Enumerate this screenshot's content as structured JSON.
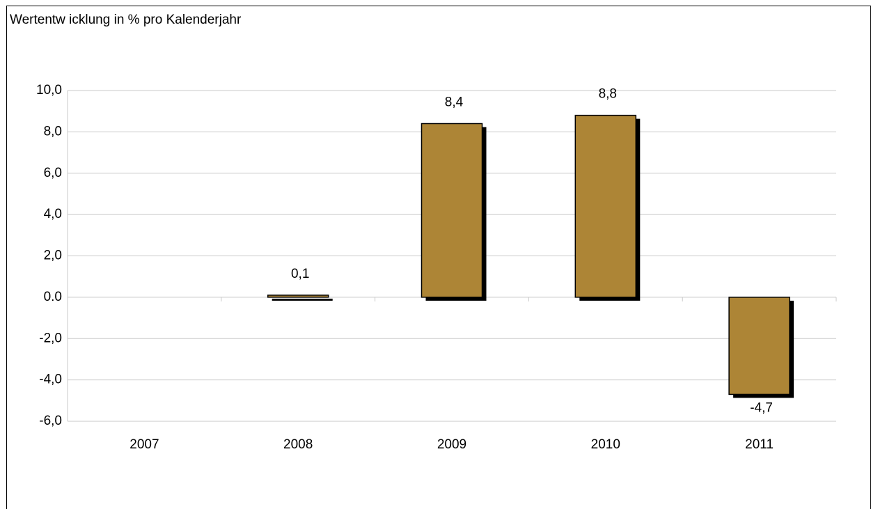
{
  "chart_data": {
    "type": "bar",
    "title": "Wertentw icklung in % pro Kalenderjahr",
    "categories": [
      "2007",
      "2008",
      "2009",
      "2010",
      "2011"
    ],
    "values": [
      null,
      0.1,
      8.4,
      8.8,
      -4.7
    ],
    "value_labels": [
      null,
      "0,1",
      "8,4",
      "8,8",
      "-4,7"
    ],
    "color": "#ad8536",
    "ylim": [
      -6,
      10
    ],
    "yticks": [
      {
        "value": -6,
        "label": "-6,0"
      },
      {
        "value": -4,
        "label": "-4,0"
      },
      {
        "value": -2,
        "label": "-2,0"
      },
      {
        "value": 0,
        "label": "0.0"
      },
      {
        "value": 2,
        "label": "2,0"
      },
      {
        "value": 4,
        "label": "4,0"
      },
      {
        "value": 6,
        "label": "6,0"
      },
      {
        "value": 8,
        "label": "8,0"
      },
      {
        "value": 10,
        "label": "10,0"
      }
    ],
    "grid": true
  }
}
